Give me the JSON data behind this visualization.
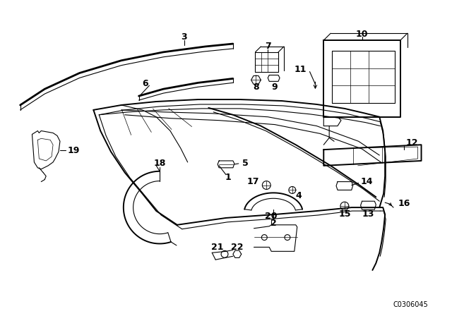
{
  "background_color": "#ffffff",
  "diagram_code": "C0306045",
  "line_color": "#000000",
  "text_color": "#000000"
}
